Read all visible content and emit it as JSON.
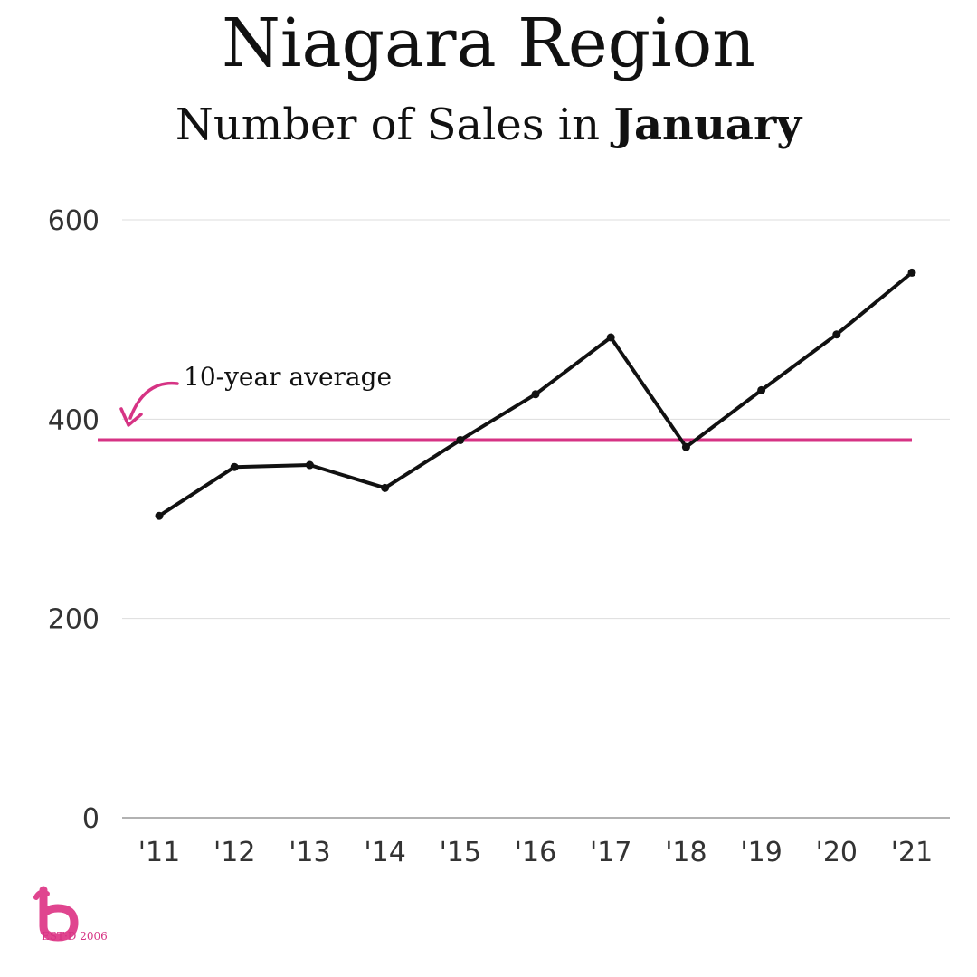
{
  "header": {
    "title": "Niagara Region",
    "subtitle_prefix": "Number of Sales in ",
    "subtitle_bold": "January"
  },
  "chart_data": {
    "type": "line",
    "title": "Niagara Region",
    "subtitle": "Number of Sales in January",
    "xlabel": "",
    "ylabel": "",
    "categories": [
      "'11",
      "'12",
      "'13",
      "'14",
      "'15",
      "'16",
      "'17",
      "'18",
      "'19",
      "'20",
      "'21"
    ],
    "series": [
      {
        "values": [
          303,
          352,
          354,
          331,
          379,
          425,
          482,
          372,
          429,
          485,
          547
        ]
      }
    ],
    "reference_line": {
      "label": "10-year average",
      "value": 379
    },
    "ylim": [
      0,
      600
    ],
    "yticks": [
      0,
      200,
      400,
      600
    ],
    "grid": true,
    "colors": {
      "line": "#111111",
      "average": "#d63384",
      "grid": "#dddddd"
    }
  },
  "branding": {
    "logo_icon": "b-logo-icon",
    "est_text": "EST·D 2006",
    "color": "#e0458f"
  }
}
